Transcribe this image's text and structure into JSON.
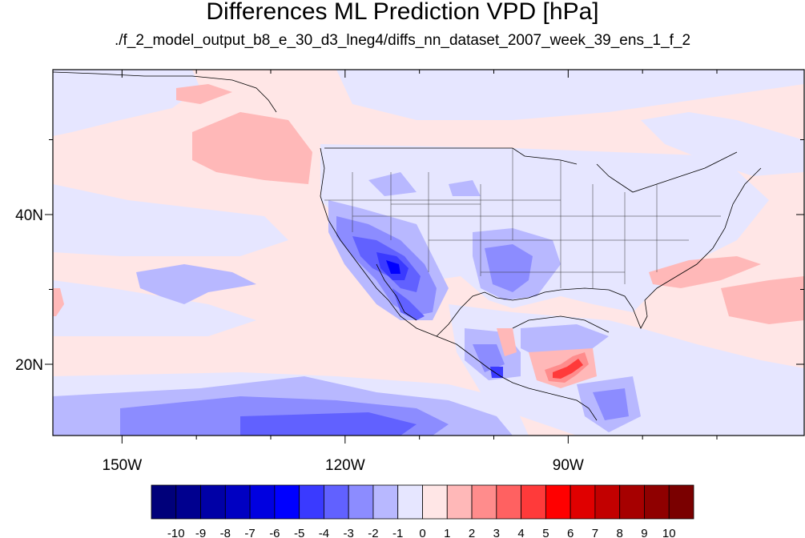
{
  "title": "Differences ML Prediction VPD [hPa]",
  "subtitle": "./f_2_model_output_b8_e_30_d3_lneg4/diffs_nn_dataset_2007_week_39_ens_1_f_2",
  "map": {
    "x_tick_labels": [
      "150W",
      "120W",
      "90W"
    ],
    "y_tick_labels": [
      "40N",
      "20N"
    ],
    "lon_ticks": [
      -150,
      -120,
      -90
    ],
    "lat_ticks": [
      40,
      20
    ]
  },
  "colorbar": {
    "labels": [
      "-10",
      "-9",
      "-8",
      "-7",
      "-6",
      "-5",
      "-4",
      "-3",
      "-2",
      "-1",
      "0",
      "1",
      "2",
      "3",
      "4",
      "5",
      "6",
      "7",
      "8",
      "9",
      "10"
    ],
    "colors": [
      "#00007a",
      "#00008f",
      "#0000a6",
      "#0000c2",
      "#0000e0",
      "#0000ff",
      "#3a3aff",
      "#6161ff",
      "#8c8cff",
      "#b8b8ff",
      "#e6e6ff",
      "#ffe6e6",
      "#ffb8b8",
      "#ff8c8c",
      "#ff6161",
      "#ff3a3a",
      "#ff0000",
      "#e00000",
      "#c20000",
      "#a60000",
      "#8f0000",
      "#7a0000"
    ]
  }
}
